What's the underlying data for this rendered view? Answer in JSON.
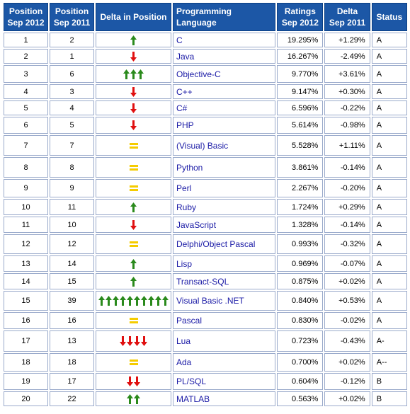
{
  "headers": [
    {
      "l1": "Position",
      "l2": "Sep 2012"
    },
    {
      "l1": "Position",
      "l2": "Sep 2011"
    },
    {
      "l1": "Delta in Position",
      "l2": ""
    },
    {
      "l1": "Programming Language",
      "l2": ""
    },
    {
      "l1": "Ratings",
      "l2": "Sep 2012"
    },
    {
      "l1": "Delta",
      "l2": "Sep 2011"
    },
    {
      "l1": "Status",
      "l2": ""
    }
  ],
  "colors": {
    "up": "#2a8a1c",
    "down": "#e01010",
    "same": "#f5cc00",
    "link": "#1a1aa6",
    "header": "#1c57a6"
  },
  "rows": [
    {
      "pos2012": "1",
      "pos2011": "2",
      "dir": "up",
      "count": 1,
      "lang": "C",
      "rating": "19.295%",
      "delta": "+1.29%",
      "status": "A"
    },
    {
      "pos2012": "2",
      "pos2011": "1",
      "dir": "down",
      "count": 1,
      "lang": "Java",
      "rating": "16.267%",
      "delta": "-2.49%",
      "status": "A"
    },
    {
      "pos2012": "3",
      "pos2011": "6",
      "dir": "up",
      "count": 3,
      "lang": "Objective-C",
      "rating": "9.770%",
      "delta": "+3.61%",
      "status": "A"
    },
    {
      "pos2012": "4",
      "pos2011": "3",
      "dir": "down",
      "count": 1,
      "lang": "C++",
      "rating": "9.147%",
      "delta": "+0.30%",
      "status": "A"
    },
    {
      "pos2012": "5",
      "pos2011": "4",
      "dir": "down",
      "count": 1,
      "lang": "C#",
      "rating": "6.596%",
      "delta": "-0.22%",
      "status": "A"
    },
    {
      "pos2012": "6",
      "pos2011": "5",
      "dir": "down",
      "count": 1,
      "lang": "PHP",
      "rating": "5.614%",
      "delta": "-0.98%",
      "status": "A"
    },
    {
      "pos2012": "7",
      "pos2011": "7",
      "dir": "same",
      "count": 1,
      "lang": "(Visual) Basic",
      "rating": "5.528%",
      "delta": "+1.11%",
      "status": "A"
    },
    {
      "pos2012": "8",
      "pos2011": "8",
      "dir": "same",
      "count": 1,
      "lang": "Python",
      "rating": "3.861%",
      "delta": "-0.14%",
      "status": "A"
    },
    {
      "pos2012": "9",
      "pos2011": "9",
      "dir": "same",
      "count": 1,
      "lang": "Perl",
      "rating": "2.267%",
      "delta": "-0.20%",
      "status": "A"
    },
    {
      "pos2012": "10",
      "pos2011": "11",
      "dir": "up",
      "count": 1,
      "lang": "Ruby",
      "rating": "1.724%",
      "delta": "+0.29%",
      "status": "A"
    },
    {
      "pos2012": "11",
      "pos2011": "10",
      "dir": "down",
      "count": 1,
      "lang": "JavaScript",
      "rating": "1.328%",
      "delta": "-0.14%",
      "status": "A"
    },
    {
      "pos2012": "12",
      "pos2011": "12",
      "dir": "same",
      "count": 1,
      "lang": "Delphi/Object Pascal",
      "rating": "0.993%",
      "delta": "-0.32%",
      "status": "A"
    },
    {
      "pos2012": "13",
      "pos2011": "14",
      "dir": "up",
      "count": 1,
      "lang": "Lisp",
      "rating": "0.969%",
      "delta": "-0.07%",
      "status": "A"
    },
    {
      "pos2012": "14",
      "pos2011": "15",
      "dir": "up",
      "count": 1,
      "lang": "Transact-SQL",
      "rating": "0.875%",
      "delta": "+0.02%",
      "status": "A"
    },
    {
      "pos2012": "15",
      "pos2011": "39",
      "dir": "up",
      "count": 10,
      "lang": "Visual Basic .NET",
      "rating": "0.840%",
      "delta": "+0.53%",
      "status": "A"
    },
    {
      "pos2012": "16",
      "pos2011": "16",
      "dir": "same",
      "count": 1,
      "lang": "Pascal",
      "rating": "0.830%",
      "delta": "-0.02%",
      "status": "A"
    },
    {
      "pos2012": "17",
      "pos2011": "13",
      "dir": "down",
      "count": 4,
      "lang": "Lua",
      "rating": "0.723%",
      "delta": "-0.43%",
      "status": "A-"
    },
    {
      "pos2012": "18",
      "pos2011": "18",
      "dir": "same",
      "count": 1,
      "lang": "Ada",
      "rating": "0.700%",
      "delta": "+0.02%",
      "status": "A--"
    },
    {
      "pos2012": "19",
      "pos2011": "17",
      "dir": "down",
      "count": 2,
      "lang": "PL/SQL",
      "rating": "0.604%",
      "delta": "-0.12%",
      "status": "B"
    },
    {
      "pos2012": "20",
      "pos2011": "22",
      "dir": "up",
      "count": 2,
      "lang": "MATLAB",
      "rating": "0.563%",
      "delta": "+0.02%",
      "status": "B"
    }
  ]
}
